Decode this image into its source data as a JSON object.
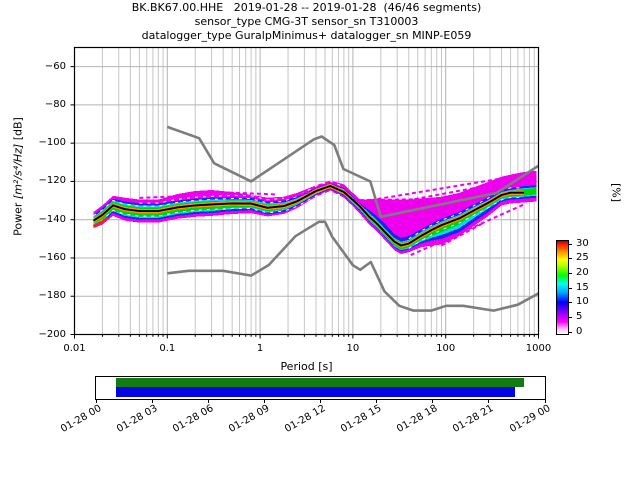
{
  "figure": {
    "title_line1": "BK.BK67.00.HHE   2019-01-28 -- 2019-01-28  (46/46 segments)",
    "title_line2": "sensor_type CMG-3T sensor_sn T310003",
    "title_line3": "datalogger_type GuralpMinimus+ datalogger_sn MINP-E059"
  },
  "axes": {
    "xlabel": "Period [s]",
    "ylabel_prefix": "Power ",
    "ylabel_math": "[m²/s⁴/Hz]",
    "ylabel_suffix": " [dB]",
    "x_tick_labels": [
      "0.01",
      "0.1",
      "1",
      "10",
      "100",
      "1000"
    ],
    "y_tick_labels": [
      "−60",
      "−80",
      "−100",
      "−120",
      "−140",
      "−160",
      "−180",
      "−200"
    ]
  },
  "colorbar": {
    "label": "[%]",
    "tick_labels": [
      "0",
      "5",
      "10",
      "15",
      "20",
      "25",
      "30"
    ],
    "tick_values": [
      0,
      5,
      10,
      15,
      20,
      25,
      30
    ]
  },
  "timeline": {
    "labels": [
      "01-28 00",
      "01-28 03",
      "01-28 06",
      "01-28 09",
      "01-28 12",
      "01-28 15",
      "01-28 18",
      "01-28 21",
      "01-29 00"
    ]
  },
  "chart_data": {
    "type": "heatmap",
    "subtype": "PPSD probability histogram with noise models",
    "title": "BK.BK67.00.HHE 2019-01-28 -- 2019-01-28 (46/46 segments)",
    "xlabel": "Period [s]",
    "ylabel": "Power [m2/s4/Hz] [dB]",
    "xscale": "log",
    "xlim": [
      0.01,
      1000
    ],
    "ylim": [
      -200,
      -50
    ],
    "grid": true,
    "x_ticks": [
      0.01,
      0.1,
      1,
      10,
      100,
      1000
    ],
    "y_ticks": [
      -60,
      -80,
      -100,
      -120,
      -140,
      -160,
      -180,
      -200
    ],
    "percent_scale_max": 30,
    "periods": [
      0.016,
      0.02,
      0.026,
      0.035,
      0.05,
      0.08,
      0.13,
      0.2,
      0.3,
      0.5,
      0.8,
      1.2,
      1.8,
      2.5,
      4,
      5.7,
      8,
      10,
      12,
      15,
      18,
      22,
      28,
      33,
      40,
      54,
      70,
      90,
      140,
      190,
      280,
      400,
      500,
      700,
      950
    ],
    "series": [
      {
        "name": "mean_psd",
        "color": "#000000",
        "values": [
          -140.5,
          -137.5,
          -132.5,
          -134.5,
          -135.5,
          -135.5,
          -133.5,
          -132.5,
          -132,
          -131.5,
          -131.6,
          -133.8,
          -132.9,
          -130.4,
          -125,
          -122.4,
          -125.5,
          -129.7,
          -133.2,
          -138.5,
          -141.9,
          -146.3,
          -151.5,
          -153.5,
          -152.5,
          -148.5,
          -145.5,
          -142.8,
          -139.3,
          -135.8,
          -131.5,
          -127.1,
          -125.9,
          -125.9,
          null
        ]
      },
      {
        "name": "noise_model_low_NLNM",
        "color": "#7d7d7d",
        "points": [
          [
            0.1,
            -168
          ],
          [
            0.17,
            -166.7
          ],
          [
            0.4,
            -166.7
          ],
          [
            0.8,
            -169.2
          ],
          [
            1.24,
            -163.7
          ],
          [
            2.4,
            -148.6
          ],
          [
            4.3,
            -141.1
          ],
          [
            5,
            -141.1
          ],
          [
            6,
            -149
          ],
          [
            10,
            -163.8
          ],
          [
            12,
            -166.2
          ],
          [
            15.6,
            -162.1
          ],
          [
            21.9,
            -177.5
          ],
          [
            31.6,
            -185
          ],
          [
            45,
            -187.5
          ],
          [
            70,
            -187.5
          ],
          [
            101,
            -185
          ],
          [
            154,
            -185
          ],
          [
            328,
            -187.5
          ],
          [
            600,
            -184.4
          ],
          [
            1000,
            -178.5
          ]
        ]
      },
      {
        "name": "noise_model_high_NHNM",
        "color": "#7d7d7d",
        "points": [
          [
            0.1,
            -91.5
          ],
          [
            0.22,
            -97.4
          ],
          [
            0.32,
            -110.5
          ],
          [
            0.8,
            -120
          ],
          [
            3.8,
            -98
          ],
          [
            4.6,
            -96.5
          ],
          [
            6.3,
            -101
          ],
          [
            7.9,
            -113.5
          ],
          [
            15.4,
            -120
          ],
          [
            20,
            -138.5
          ],
          [
            354.8,
            -126
          ],
          [
            1000,
            -111.8
          ]
        ]
      }
    ],
    "band_layers": [
      {
        "name": "histogram-band-magenta",
        "percent": "0-5",
        "color": "#ee00ee",
        "top": [
          -136,
          -132.5,
          -127.5,
          -128.5,
          -129.5,
          -129.5,
          -126.5,
          -125,
          -124.5,
          -125.5,
          -127,
          -128.5,
          -128,
          -126,
          -122,
          -119.5,
          -121.5,
          -126,
          -129.5,
          -129.5,
          -129.5,
          -129.5,
          -129.5,
          -129.5,
          -129.5,
          -129,
          -128.5,
          -128,
          -126,
          -123.5,
          -120.5,
          -117.5,
          -116.5,
          -115,
          -114.5
        ],
        "bot": [
          -144.5,
          -142.5,
          -138,
          -140.5,
          -141.5,
          -141.5,
          -139.5,
          -138.5,
          -138,
          -137,
          -136.6,
          -138.3,
          -137,
          -134,
          -128,
          -125,
          -128.5,
          -133,
          -137,
          -142.5,
          -146,
          -150.5,
          -156,
          -158,
          -157,
          -154.5,
          -153.5,
          -153,
          -148.5,
          -144,
          -138.5,
          -132.5,
          -131.5,
          -131,
          -130.5
        ]
      },
      {
        "name": "histogram-band-blue",
        "percent": "5-10",
        "color": "#2222f0",
        "top": [
          -137.5,
          -134,
          -129,
          -130.5,
          -131.5,
          -131.5,
          -130,
          -129,
          -128.5,
          -128.5,
          -128.6,
          -130.5,
          -130,
          -128,
          -123.5,
          -121,
          -123.5,
          -128,
          -131.5,
          -135,
          -138,
          -142,
          -147.5,
          -149.5,
          -148.5,
          -145,
          -142,
          -139.5,
          -136,
          -132.5,
          -128.5,
          -124.5,
          -123.5,
          -122.5,
          -122
        ],
        "bot": [
          -143.5,
          -141.5,
          -136.5,
          -139,
          -140,
          -140,
          -138,
          -137,
          -136.5,
          -135.5,
          -135,
          -137.3,
          -136,
          -133,
          -127,
          -124,
          -127.5,
          -132,
          -135.5,
          -141,
          -144.5,
          -149,
          -154.5,
          -156.5,
          -155.5,
          -152.5,
          -151,
          -150,
          -146.5,
          -142,
          -136.5,
          -130.5,
          -129.5,
          -129,
          -128.5
        ]
      },
      {
        "name": "histogram-band-cyan",
        "percent": "10-15",
        "color": "#00dcee",
        "top": [
          -138.5,
          -135,
          -130,
          -131.5,
          -132.5,
          -132.5,
          -131,
          -130,
          -129.5,
          -129.5,
          -129.6,
          -131.5,
          -131,
          -128.8,
          -124,
          -121.5,
          -124,
          -128.5,
          -132,
          -136.5,
          -140,
          -144.5,
          -149.5,
          -151.5,
          -150.5,
          -146.5,
          -143.5,
          -141,
          -137.5,
          -134,
          -130,
          -125.5,
          -124.5,
          -123.5,
          -123
        ],
        "bot": [
          -142.5,
          -140.5,
          -135.5,
          -138,
          -139,
          -139,
          -137,
          -136,
          -135.5,
          -134.5,
          -134,
          -136.3,
          -135,
          -132.2,
          -126.5,
          -123.5,
          -127,
          -131.5,
          -135,
          -140.5,
          -144,
          -148.5,
          -154,
          -156,
          -155,
          -151.5,
          -149.5,
          -148,
          -144.5,
          -140,
          -134.5,
          -129.5,
          -128.5,
          -128,
          -127.5
        ]
      },
      {
        "name": "histogram-band-green",
        "percent": "15-22",
        "color": "#00d400",
        "top": [
          -139,
          -135.5,
          -130.7,
          -132.5,
          -133.5,
          -133.5,
          -131.8,
          -130.8,
          -130.3,
          -130,
          -130.1,
          -132.2,
          -131.5,
          -129.3,
          -124.3,
          -121.8,
          -124.3,
          -128.8,
          -132.3,
          -137,
          -140.5,
          -145,
          -150,
          -152,
          -151,
          -147,
          -144,
          -141.5,
          -138,
          -134.5,
          -130.3,
          -126,
          -125,
          -124,
          -123.5
        ],
        "bot": [
          -142,
          -140,
          -135,
          -137.3,
          -138.3,
          -138.3,
          -136.3,
          -135.3,
          -134.8,
          -133.8,
          -133.4,
          -135.6,
          -134.4,
          -131.8,
          -126,
          -123.2,
          -126.6,
          -131,
          -134.5,
          -140,
          -143.5,
          -148,
          -153.5,
          -155.5,
          -154.5,
          -150.5,
          -148.5,
          -146.5,
          -142.5,
          -138,
          -133.5,
          -128.8,
          -127.8,
          -127.3,
          -126.8
        ]
      }
    ],
    "core_band": {
      "name": "histogram-band-orange",
      "percent": ">22",
      "color": "#ff9000",
      "half_width_db": 1.2
    },
    "red_accent": {
      "color": "#ff2200",
      "points": [
        [
          0.016,
          -143.5
        ],
        [
          0.019,
          -141.5
        ],
        [
          0.023,
          -139
        ]
      ]
    },
    "magenta_streaks": [
      [
        [
          11,
          -131
        ],
        [
          700,
          -116.5
        ]
      ],
      [
        [
          14,
          -134
        ],
        [
          700,
          -118.5
        ]
      ],
      [
        [
          18,
          -138
        ],
        [
          520,
          -122
        ]
      ],
      [
        [
          24,
          -143
        ],
        [
          360,
          -126
        ]
      ],
      [
        [
          30,
          -148
        ],
        [
          210,
          -130
        ]
      ],
      [
        [
          10,
          -129.8
        ],
        [
          75,
          -129.2
        ]
      ],
      [
        [
          42,
          -158.5
        ],
        [
          700,
          -132
        ]
      ],
      [
        [
          90,
          -153.5
        ],
        [
          260,
          -141.5
        ]
      ],
      [
        [
          0.23,
          -125.3
        ],
        [
          1.5,
          -126.8
        ]
      ],
      [
        [
          0.05,
          -128.6
        ],
        [
          0.16,
          -127.6
        ]
      ],
      [
        [
          1.9,
          -128.6
        ],
        [
          3.4,
          -125.8
        ]
      ]
    ],
    "coverage_bar": {
      "box_range": [
        "01-28 00",
        "01-29 00"
      ],
      "green_color": "#117c11",
      "blue_color": "#0303e8"
    }
  }
}
